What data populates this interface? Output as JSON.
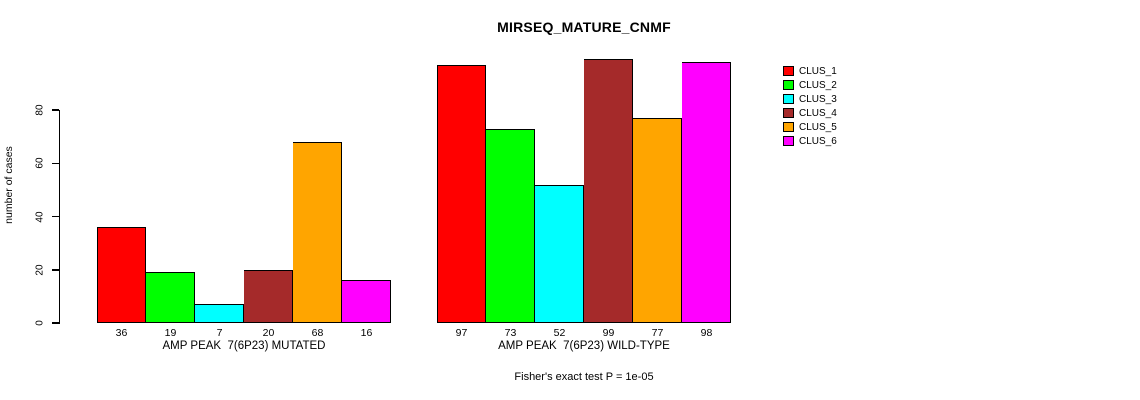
{
  "chart_data": {
    "type": "bar",
    "title": "MIRSEQ_MATURE_CNMF",
    "ylabel": "number of cases",
    "yticks": [
      0,
      20,
      40,
      60,
      80
    ],
    "ylim": [
      0,
      104
    ],
    "grid": false,
    "legend_position": "top-right",
    "series_labels": [
      "CLUS_1",
      "CLUS_2",
      "CLUS_3",
      "CLUS_4",
      "CLUS_5",
      "CLUS_6"
    ],
    "colors": [
      "#ff0000",
      "#00ff00",
      "#00ffff",
      "#a52a2a",
      "#ffa500",
      "#ff00ff"
    ],
    "groups": [
      {
        "label": "AMP PEAK  7(6P23) MUTATED",
        "values": [
          36,
          19,
          7,
          20,
          68,
          16
        ]
      },
      {
        "label": "AMP PEAK  7(6P23) WILD-TYPE",
        "values": [
          97,
          73,
          52,
          99,
          77,
          98
        ]
      }
    ],
    "annotation": "Fisher's exact test P = 1e-05"
  }
}
